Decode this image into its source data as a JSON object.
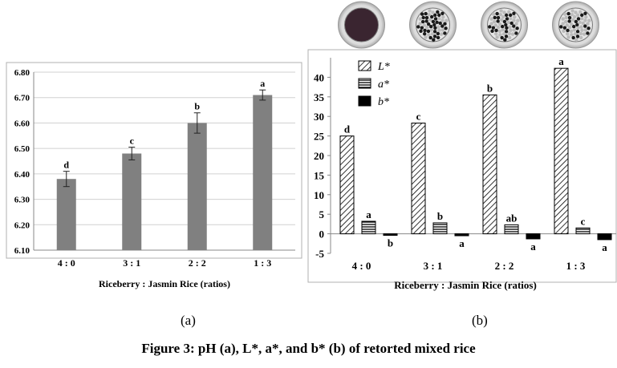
{
  "caption": "Figure 3: pH (a), L*, a*, and b* (b) of retorted mixed rice",
  "panels": {
    "a": "(a)",
    "b": "(b)"
  },
  "colors": {
    "ph_bar": "#808080",
    "frame": "#a0a0a0",
    "grid": "#d0d0d0"
  },
  "chart_data": [
    {
      "type": "bar",
      "panel": "(a)",
      "title": "",
      "xlabel": "Riceberry : Jasmin Rice (ratios)",
      "ylabel": "",
      "categories": [
        "4 : 0",
        "3 : 1",
        "2 : 2",
        "1 : 3"
      ],
      "values": [
        6.38,
        6.48,
        6.6,
        6.71
      ],
      "errors": [
        0.03,
        0.025,
        0.04,
        0.02
      ],
      "letters": [
        "d",
        "c",
        "b",
        "a"
      ],
      "ylim": [
        6.1,
        6.8
      ],
      "yticks": [
        "6.10",
        "6.20",
        "6.30",
        "6.40",
        "6.50",
        "6.60",
        "6.70",
        "6.80"
      ],
      "grid": true
    },
    {
      "type": "bar",
      "panel": "(b)",
      "title": "",
      "xlabel": "Riceberry : Jasmin Rice (ratios)",
      "ylabel": "",
      "categories": [
        "4 : 0",
        "3 : 1",
        "2 : 2",
        "1 : 3"
      ],
      "series": [
        {
          "name": "L*",
          "values": [
            25.0,
            28.3,
            35.5,
            42.3
          ],
          "letters": [
            "d",
            "c",
            "b",
            "a"
          ],
          "pattern": "diagonal-hatch"
        },
        {
          "name": "a*",
          "values": [
            3.2,
            2.8,
            2.3,
            1.5
          ],
          "letters": [
            "a",
            "b",
            "ab",
            "c"
          ],
          "pattern": "horizontal-stripes"
        },
        {
          "name": "b*",
          "values": [
            -0.4,
            -0.5,
            -1.3,
            -1.5
          ],
          "letters": [
            "b",
            "a",
            "a",
            "a"
          ],
          "pattern": "solid-black"
        }
      ],
      "ylim": [
        -5,
        45
      ],
      "yticks": [
        "-5",
        "0",
        "5",
        "10",
        "15",
        "20",
        "25",
        "30",
        "35",
        "40"
      ],
      "legend": "top-left",
      "grid": false,
      "images_above_bars": [
        "rice-sample-photo",
        "rice-sample-photo",
        "rice-sample-photo",
        "rice-sample-photo"
      ]
    }
  ]
}
